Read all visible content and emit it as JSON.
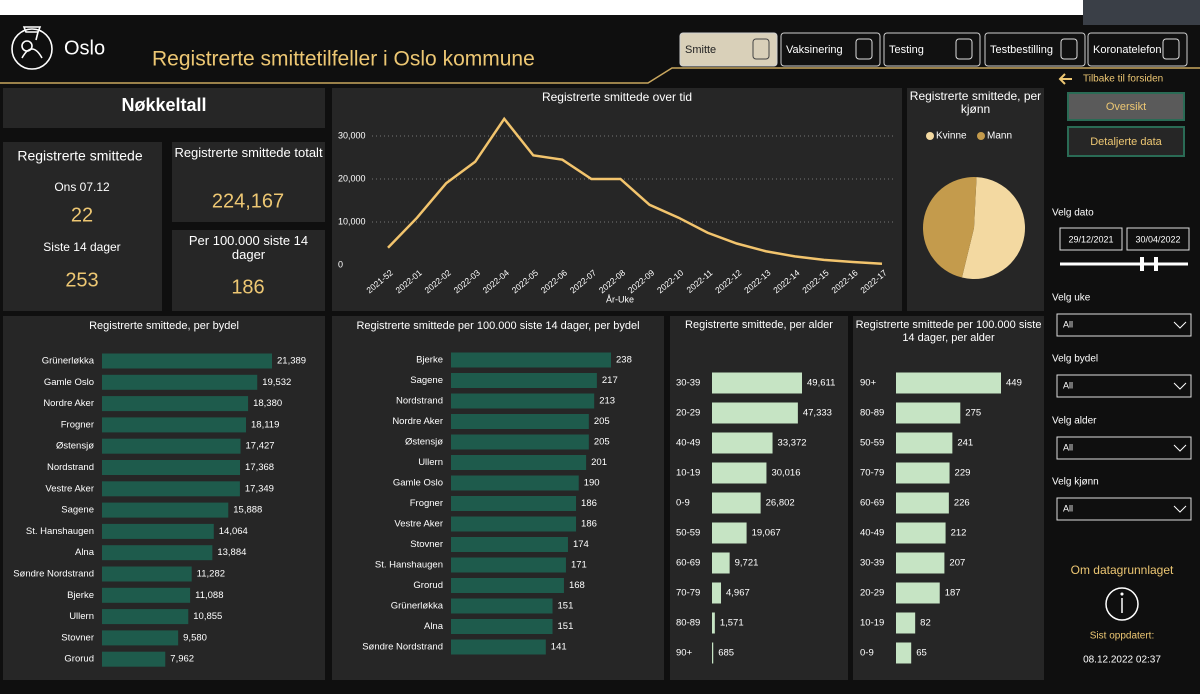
{
  "header": {
    "city": "Oslo",
    "title": "Registrerte smittetilfeller i Oslo kommune"
  },
  "nav": [
    "Smitte",
    "Vaksinering",
    "Testing",
    "Testbestilling",
    "Koronatelefon"
  ],
  "kpis": {
    "title": "Nøkkeltall",
    "daily": {
      "label": "Registrerte smittede",
      "date": "Ons 07.12",
      "value": 22,
      "period": "Siste 14 dager",
      "period_value": 253
    },
    "total": {
      "label": "Registrerte smittede totalt",
      "value_label": "224,167"
    },
    "per100k": {
      "label": "Per 100.000 siste 14 dager",
      "value": 186
    }
  },
  "sidebar": {
    "back": "Tilbake til forsiden",
    "buttons": [
      "Oversikt",
      "Detaljerte data"
    ],
    "date_label": "Velg dato",
    "date_from": "29/12/2021",
    "date_to": "30/04/2022",
    "filters": [
      {
        "label": "Velg uke",
        "value": "All"
      },
      {
        "label": "Velg bydel",
        "value": "All"
      },
      {
        "label": "Velg alder",
        "value": "All"
      },
      {
        "label": "Velg kjønn",
        "value": "All"
      }
    ],
    "about": "Om datagrunnlaget",
    "updated_label": "Sist oppdatert:",
    "updated": "08.12.2022 02:37"
  },
  "chart_data": [
    {
      "type": "line",
      "title": "Registrerte smittede over tid",
      "xlabel": "År-Uke",
      "categories": [
        "2021-52",
        "2022-01",
        "2022-02",
        "2022-03",
        "2022-04",
        "2022-05",
        "2022-06",
        "2022-07",
        "2022-08",
        "2022-09",
        "2022-10",
        "2022-11",
        "2022-12",
        "2022-13",
        "2022-14",
        "2022-15",
        "2022-16",
        "2022-17"
      ],
      "series": [
        {
          "name": "Registrerte smittede",
          "color": "#f2c46d",
          "values": [
            4000,
            11000,
            19000,
            24000,
            34000,
            25500,
            24500,
            20000,
            20000,
            14000,
            11000,
            7500,
            5000,
            3200,
            2000,
            1200,
            700,
            300
          ]
        }
      ],
      "ylim": [
        0,
        35000
      ],
      "yticks": [
        0,
        {
          "value": 10000,
          "label": "10,000"
        },
        {
          "value": 20000,
          "label": "20,000"
        },
        {
          "value": 30000,
          "label": "30,000"
        }
      ],
      "grid": true
    },
    {
      "type": "pie",
      "title": "Registrerte smittede, per kjønn",
      "categories": [
        "Kvinne",
        "Mann"
      ],
      "values": [
        53,
        47
      ],
      "colors": [
        "#f3d9a1",
        "#c49b4c"
      ]
    },
    {
      "type": "hbar",
      "title": "Registrerte smittede, per bydel",
      "color": "#1e5b4c",
      "categories": [
        "Grünerløkka",
        "Gamle Oslo",
        "Nordre Aker",
        "Frogner",
        "Østensjø",
        "Nordstrand",
        "Vestre Aker",
        "Sagene",
        "St. Hanshaugen",
        "Alna",
        "Søndre Nordstrand",
        "Bjerke",
        "Ullern",
        "Stovner",
        "Grorud"
      ],
      "values": [
        21389,
        19532,
        18380,
        18119,
        17427,
        17368,
        17349,
        15888,
        14064,
        13884,
        11282,
        11088,
        10855,
        9580,
        7962
      ],
      "value_labels": [
        "21,389",
        "19,532",
        "18,380",
        "18,119",
        "17,427",
        "17,368",
        "17,349",
        "15,888",
        "14,064",
        "13,884",
        "11,282",
        "11,088",
        "10,855",
        "9,580",
        "7,962"
      ]
    },
    {
      "type": "hbar",
      "title": "Registrerte smittede per 100.000 siste 14 dager, per bydel",
      "color": "#1e5b4c",
      "categories": [
        "Bjerke",
        "Sagene",
        "Nordstrand",
        "Nordre Aker",
        "Østensjø",
        "Ullern",
        "Gamle Oslo",
        "Frogner",
        "Vestre Aker",
        "Stovner",
        "St. Hanshaugen",
        "Grorud",
        "Grünerløkka",
        "Alna",
        "Søndre Nordstrand"
      ],
      "values": [
        238,
        217,
        213,
        205,
        205,
        201,
        190,
        186,
        186,
        174,
        171,
        168,
        151,
        151,
        141
      ]
    },
    {
      "type": "hbar",
      "title": "Registrerte smittede, per alder",
      "color": "#c6e4c4",
      "categories": [
        "30-39",
        "20-29",
        "40-49",
        "10-19",
        "0-9",
        "50-59",
        "60-69",
        "70-79",
        "80-89",
        "90+"
      ],
      "values": [
        49611,
        47333,
        33372,
        30016,
        26802,
        19067,
        9721,
        4967,
        1571,
        685
      ],
      "value_labels": [
        "49,611",
        "47,333",
        "33,372",
        "30,016",
        "26,802",
        "19,067",
        "9,721",
        "4,967",
        "1,571",
        "685"
      ]
    },
    {
      "type": "hbar",
      "title": "Registrerte smittede per 100.000 siste 14 dager, per alder",
      "color": "#c6e4c4",
      "categories": [
        "90+",
        "80-89",
        "50-59",
        "70-79",
        "60-69",
        "40-49",
        "30-39",
        "20-29",
        "10-19",
        "0-9"
      ],
      "values": [
        449,
        275,
        241,
        229,
        226,
        212,
        207,
        187,
        82,
        65
      ]
    }
  ]
}
